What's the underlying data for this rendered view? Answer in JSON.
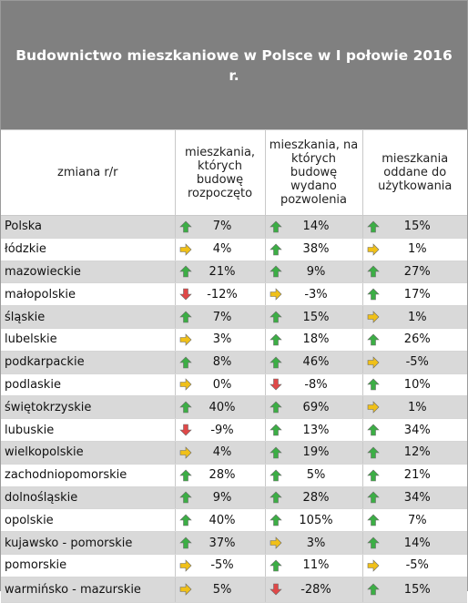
{
  "title": "Budownictwo mieszkaniowe w Polsce w I połowie 2016 r.",
  "headers": {
    "region": "zmiana r/r",
    "started": "mieszkania, których budowę rozpoczęto",
    "permits": "mieszkania, na których budowę wydano pozwolenia",
    "completed": "mieszkania oddane do użytkowania"
  },
  "colors": {
    "up": "#3cae45",
    "flat": "#f0c018",
    "down": "#e04848"
  },
  "rows": [
    {
      "region": "Polska",
      "started": {
        "value": "7%",
        "trend": "up"
      },
      "permits": {
        "value": "14%",
        "trend": "up"
      },
      "completed": {
        "value": "15%",
        "trend": "up"
      }
    },
    {
      "region": "łódzkie",
      "started": {
        "value": "4%",
        "trend": "flat"
      },
      "permits": {
        "value": "38%",
        "trend": "up"
      },
      "completed": {
        "value": "1%",
        "trend": "flat"
      }
    },
    {
      "region": "mazowieckie",
      "started": {
        "value": "21%",
        "trend": "up"
      },
      "permits": {
        "value": "9%",
        "trend": "up"
      },
      "completed": {
        "value": "27%",
        "trend": "up"
      }
    },
    {
      "region": "małopolskie",
      "started": {
        "value": "-12%",
        "trend": "down"
      },
      "permits": {
        "value": "-3%",
        "trend": "flat"
      },
      "completed": {
        "value": "17%",
        "trend": "up"
      }
    },
    {
      "region": "śląskie",
      "started": {
        "value": "7%",
        "trend": "up"
      },
      "permits": {
        "value": "15%",
        "trend": "up"
      },
      "completed": {
        "value": "1%",
        "trend": "flat"
      }
    },
    {
      "region": "lubelskie",
      "started": {
        "value": "3%",
        "trend": "flat"
      },
      "permits": {
        "value": "18%",
        "trend": "up"
      },
      "completed": {
        "value": "26%",
        "trend": "up"
      }
    },
    {
      "region": "podkarpackie",
      "started": {
        "value": "8%",
        "trend": "up"
      },
      "permits": {
        "value": "46%",
        "trend": "up"
      },
      "completed": {
        "value": "-5%",
        "trend": "flat"
      }
    },
    {
      "region": "podlaskie",
      "started": {
        "value": "0%",
        "trend": "flat"
      },
      "permits": {
        "value": "-8%",
        "trend": "down"
      },
      "completed": {
        "value": "10%",
        "trend": "up"
      }
    },
    {
      "region": "świętokrzyskie",
      "started": {
        "value": "40%",
        "trend": "up"
      },
      "permits": {
        "value": "69%",
        "trend": "up"
      },
      "completed": {
        "value": "1%",
        "trend": "flat"
      }
    },
    {
      "region": "lubuskie",
      "started": {
        "value": "-9%",
        "trend": "down"
      },
      "permits": {
        "value": "13%",
        "trend": "up"
      },
      "completed": {
        "value": "34%",
        "trend": "up"
      }
    },
    {
      "region": "wielkopolskie",
      "started": {
        "value": "4%",
        "trend": "flat"
      },
      "permits": {
        "value": "19%",
        "trend": "up"
      },
      "completed": {
        "value": "12%",
        "trend": "up"
      }
    },
    {
      "region": "zachodniopomorskie",
      "started": {
        "value": "28%",
        "trend": "up"
      },
      "permits": {
        "value": "5%",
        "trend": "up"
      },
      "completed": {
        "value": "21%",
        "trend": "up"
      }
    },
    {
      "region": "dolnośląskie",
      "started": {
        "value": "9%",
        "trend": "up"
      },
      "permits": {
        "value": "28%",
        "trend": "up"
      },
      "completed": {
        "value": "34%",
        "trend": "up"
      }
    },
    {
      "region": "opolskie",
      "started": {
        "value": "40%",
        "trend": "up"
      },
      "permits": {
        "value": "105%",
        "trend": "up"
      },
      "completed": {
        "value": "7%",
        "trend": "up"
      }
    },
    {
      "region": "kujawsko - pomorskie",
      "started": {
        "value": "37%",
        "trend": "up"
      },
      "permits": {
        "value": "3%",
        "trend": "flat"
      },
      "completed": {
        "value": "14%",
        "trend": "up"
      }
    },
    {
      "region": "pomorskie",
      "started": {
        "value": "-5%",
        "trend": "flat"
      },
      "permits": {
        "value": "11%",
        "trend": "up"
      },
      "completed": {
        "value": "-5%",
        "trend": "flat"
      }
    },
    {
      "region": "warmińsko - mazurskie",
      "started": {
        "value": "5%",
        "trend": "flat"
      },
      "permits": {
        "value": "-28%",
        "trend": "down"
      },
      "completed": {
        "value": "15%",
        "trend": "up"
      }
    }
  ]
}
